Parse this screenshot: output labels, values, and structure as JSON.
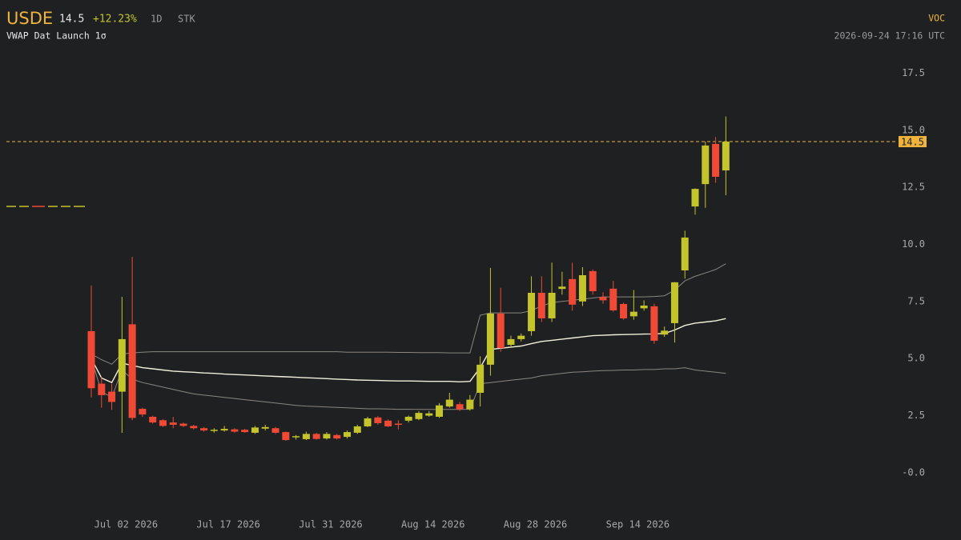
{
  "header": {
    "symbol": "USDE",
    "price": "14.5",
    "change": "+12.23%",
    "interval": "1D",
    "kind": "STK",
    "study": "VWAP Dat Launch 1σ",
    "source": "VOC",
    "timestamp": "2026-09-24 17:16 UTC"
  },
  "chart_data": {
    "type": "candlestick",
    "categories": [
      null,
      null,
      null,
      "Jul 02 2026",
      null,
      null,
      null,
      null,
      null,
      null,
      null,
      null,
      null,
      "Jul 17 2026",
      null,
      null,
      null,
      null,
      null,
      null,
      null,
      null,
      null,
      "Jul 31 2026",
      null,
      null,
      null,
      null,
      null,
      null,
      null,
      null,
      null,
      "Aug 14 2026",
      null,
      null,
      null,
      null,
      null,
      null,
      null,
      null,
      null,
      "Aug 28 2026",
      null,
      null,
      null,
      null,
      null,
      null,
      null,
      null,
      null,
      "Sep 14 2026",
      null,
      null,
      null,
      null,
      null,
      null,
      null,
      null,
      null
    ],
    "open": [
      6.2,
      3.9,
      3.55,
      3.55,
      6.5,
      2.8,
      2.45,
      2.3,
      2.2,
      2.15,
      2.05,
      1.95,
      1.83,
      1.85,
      1.9,
      1.88,
      1.75,
      1.93,
      1.95,
      1.78,
      1.55,
      1.47,
      1.7,
      1.5,
      1.65,
      1.57,
      1.75,
      2.03,
      2.42,
      2.28,
      2.15,
      2.28,
      2.35,
      2.5,
      2.45,
      2.9,
      3.0,
      2.78,
      3.5,
      4.73,
      6.97,
      5.6,
      5.85,
      6.2,
      7.88,
      6.76,
      8.05,
      8.48,
      7.5,
      8.83,
      7.7,
      8.06,
      7.39,
      6.85,
      7.2,
      7.29,
      6.05,
      6.55,
      8.86,
      11.66,
      12.64,
      14.4,
      13.24
    ],
    "high": [
      8.2,
      4.2,
      3.9,
      7.7,
      9.45,
      2.85,
      2.5,
      2.35,
      2.45,
      2.2,
      2.1,
      2.0,
      1.95,
      2.05,
      1.95,
      1.92,
      2.05,
      2.1,
      2.0,
      1.8,
      1.65,
      1.8,
      1.75,
      1.78,
      1.7,
      1.85,
      2.1,
      2.45,
      2.48,
      2.33,
      2.3,
      2.5,
      2.7,
      2.7,
      3.05,
      3.5,
      3.1,
      3.4,
      5.1,
      8.97,
      8.1,
      6.0,
      6.1,
      8.6,
      8.6,
      9.2,
      8.8,
      9.2,
      9.0,
      8.9,
      7.9,
      8.4,
      7.45,
      8.0,
      7.55,
      7.4,
      6.4,
      8.35,
      10.6,
      12.45,
      14.5,
      14.7,
      15.6
    ],
    "low": [
      3.3,
      2.85,
      2.75,
      1.75,
      2.3,
      2.45,
      2.15,
      2.0,
      1.95,
      2.0,
      1.9,
      1.8,
      1.75,
      1.8,
      1.75,
      1.75,
      1.7,
      1.85,
      1.7,
      1.4,
      1.45,
      1.43,
      1.45,
      1.45,
      1.45,
      1.5,
      1.7,
      2.0,
      2.1,
      2.0,
      1.9,
      2.2,
      2.3,
      2.45,
      2.4,
      2.85,
      2.7,
      2.72,
      2.9,
      4.25,
      5.3,
      5.5,
      5.75,
      6.0,
      6.6,
      6.6,
      7.8,
      7.1,
      7.3,
      7.8,
      7.4,
      7.05,
      6.7,
      6.7,
      7.1,
      5.65,
      5.95,
      5.7,
      8.5,
      11.3,
      11.6,
      12.7,
      12.15
    ],
    "close": [
      3.7,
      3.4,
      3.1,
      5.85,
      2.4,
      2.55,
      2.2,
      2.05,
      2.1,
      2.05,
      1.95,
      1.85,
      1.88,
      1.92,
      1.8,
      1.78,
      1.98,
      2.0,
      1.75,
      1.43,
      1.6,
      1.7,
      1.48,
      1.7,
      1.5,
      1.78,
      2.03,
      2.38,
      2.17,
      2.03,
      2.1,
      2.45,
      2.62,
      2.6,
      2.95,
      3.2,
      2.78,
      3.2,
      4.73,
      6.97,
      5.46,
      5.85,
      6.0,
      7.88,
      6.76,
      7.88,
      8.15,
      7.36,
      8.65,
      7.95,
      7.55,
      7.11,
      6.76,
      7.05,
      7.32,
      5.78,
      6.22,
      8.34,
      10.3,
      12.43,
      14.33,
      12.96,
      14.5
    ],
    "up_color": "#c4c42c",
    "down_color": "#f04a36",
    "lines": [
      {
        "color": "#f2f0dc",
        "values": [
          5.0,
          4.15,
          3.95,
          4.8,
          4.7,
          4.6,
          4.55,
          4.5,
          4.45,
          4.42,
          4.4,
          4.37,
          4.35,
          4.32,
          4.3,
          4.28,
          4.26,
          4.24,
          4.22,
          4.2,
          4.18,
          4.16,
          4.14,
          4.12,
          4.1,
          4.08,
          4.06,
          4.05,
          4.04,
          4.03,
          4.02,
          4.02,
          4.01,
          4.0,
          4.0,
          4.0,
          3.98,
          4.0,
          4.6,
          5.4,
          5.45,
          5.5,
          5.55,
          5.65,
          5.75,
          5.8,
          5.85,
          5.9,
          5.95,
          6.0,
          6.02,
          6.04,
          6.05,
          6.06,
          6.07,
          6.08,
          6.1,
          6.25,
          6.45,
          6.55,
          6.6,
          6.65,
          6.75
        ]
      },
      {
        "color": "#8a8680",
        "values": [
          5.2,
          4.95,
          4.75,
          5.2,
          5.25,
          5.28,
          5.3,
          5.3,
          5.3,
          5.3,
          5.3,
          5.3,
          5.3,
          5.3,
          5.3,
          5.3,
          5.3,
          5.3,
          5.3,
          5.3,
          5.3,
          5.3,
          5.3,
          5.3,
          5.3,
          5.28,
          5.28,
          5.28,
          5.28,
          5.28,
          5.27,
          5.27,
          5.26,
          5.26,
          5.26,
          5.25,
          5.25,
          5.25,
          6.9,
          7.0,
          7.0,
          7.0,
          7.0,
          7.1,
          7.3,
          7.45,
          7.5,
          7.55,
          7.6,
          7.65,
          7.7,
          7.7,
          7.7,
          7.7,
          7.7,
          7.72,
          7.75,
          8.0,
          8.4,
          8.6,
          8.75,
          8.9,
          9.15
        ]
      },
      {
        "color": "#8a8680",
        "values": [
          5.0,
          3.55,
          3.3,
          4.5,
          4.1,
          3.95,
          3.85,
          3.75,
          3.65,
          3.55,
          3.45,
          3.4,
          3.35,
          3.3,
          3.25,
          3.2,
          3.15,
          3.1,
          3.05,
          3.0,
          2.95,
          2.92,
          2.9,
          2.88,
          2.86,
          2.84,
          2.82,
          2.8,
          2.8,
          2.79,
          2.78,
          2.78,
          2.77,
          2.77,
          2.77,
          2.77,
          2.77,
          2.78,
          3.9,
          3.95,
          4.0,
          4.05,
          4.1,
          4.15,
          4.25,
          4.3,
          4.35,
          4.4,
          4.42,
          4.45,
          4.47,
          4.48,
          4.5,
          4.5,
          4.52,
          4.52,
          4.55,
          4.55,
          4.6,
          4.5,
          4.45,
          4.4,
          4.35
        ]
      }
    ],
    "last_price": 14.5,
    "last_color": "#f0b43c",
    "ylim": [
      -1.72,
      18.6
    ],
    "yticks": [
      {
        "value": 17.5,
        "label": "17.5"
      },
      {
        "value": 15,
        "label": "15.0"
      },
      {
        "value": 12.5,
        "label": "12.5"
      },
      {
        "value": 10,
        "label": "10.0"
      },
      {
        "value": 7.5,
        "label": "7.5"
      },
      {
        "value": 5,
        "label": "5.0"
      },
      {
        "value": 2.5,
        "label": "2.5"
      },
      {
        "value": 0,
        "label": "-0.0"
      }
    ]
  }
}
